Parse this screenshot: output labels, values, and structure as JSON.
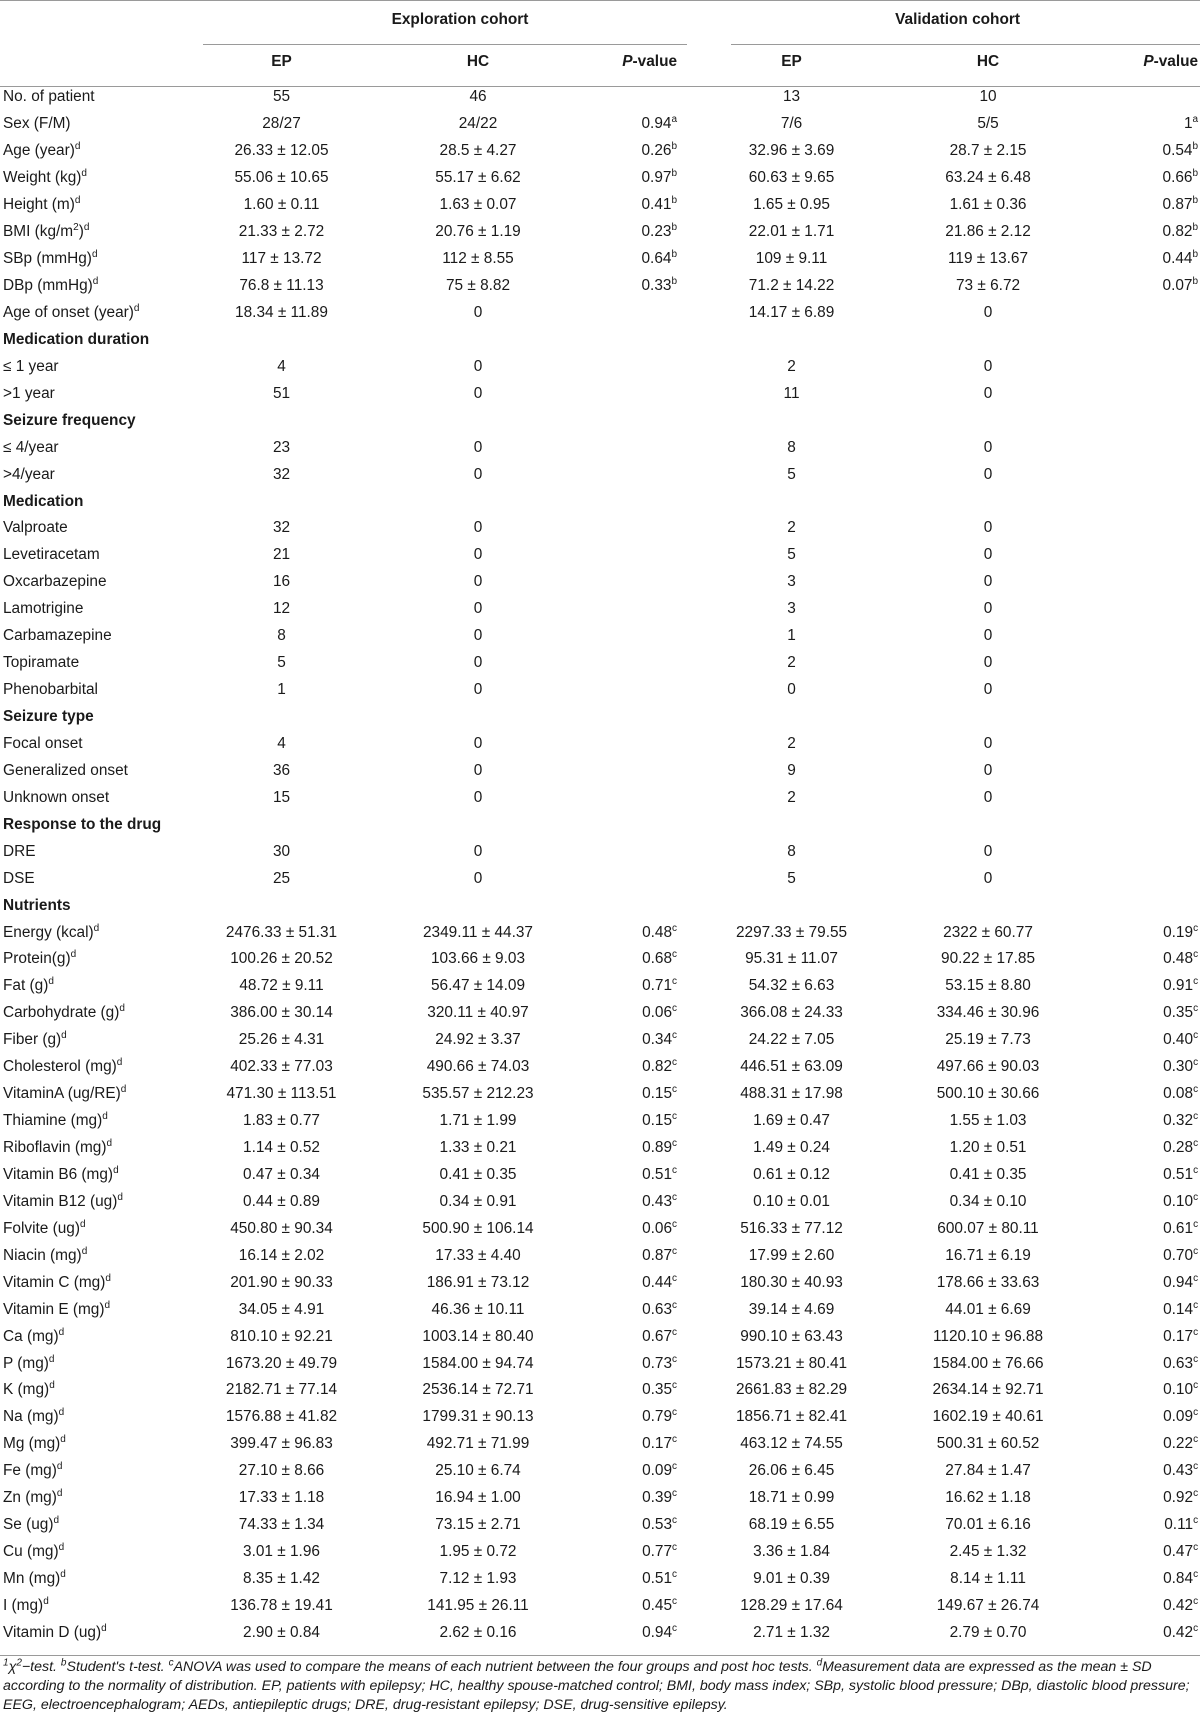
{
  "header": {
    "groups": [
      "Exploration cohort",
      "Validation cohort"
    ],
    "columns": [
      "EP",
      "HC",
      "P-value",
      "EP",
      "HC",
      "P-value"
    ],
    "pvalue_italic": "P",
    "pvalue_rest": "-value"
  },
  "rows": [
    {
      "type": "data",
      "label": "No. of patient",
      "c": [
        "55",
        "46",
        "",
        "13",
        "10",
        ""
      ]
    },
    {
      "type": "data",
      "label": "Sex (F/M)",
      "c": [
        "28/27",
        "24/22",
        "0.94a",
        "7/6",
        "5/5",
        "1a"
      ]
    },
    {
      "type": "data",
      "label": "Age (year)d",
      "c": [
        "26.33 ± 12.05",
        "28.5 ± 4.27",
        "0.26b",
        "32.96 ± 3.69",
        "28.7 ± 2.15",
        "0.54b"
      ]
    },
    {
      "type": "data",
      "label": "Weight (kg)d",
      "c": [
        "55.06 ± 10.65",
        "55.17 ± 6.62",
        "0.97b",
        "60.63 ± 9.65",
        "63.24 ± 6.48",
        "0.66b"
      ]
    },
    {
      "type": "data",
      "label": "Height (m)d",
      "c": [
        "1.60 ± 0.11",
        "1.63 ± 0.07",
        "0.41b",
        "1.65 ± 0.95",
        "1.61 ± 0.36",
        "0.87b"
      ]
    },
    {
      "type": "data",
      "label": "BMI (kg/m2)d",
      "c": [
        "21.33 ± 2.72",
        "20.76 ± 1.19",
        "0.23b",
        "22.01 ± 1.71",
        "21.86 ± 2.12",
        "0.82b"
      ]
    },
    {
      "type": "data",
      "label": "SBp (mmHg)d",
      "c": [
        "117 ± 13.72",
        "112 ± 8.55",
        "0.64b",
        "109 ± 9.11",
        "119 ± 13.67",
        "0.44b"
      ]
    },
    {
      "type": "data",
      "label": "DBp (mmHg)d",
      "c": [
        "76.8 ± 11.13",
        "75 ± 8.82",
        "0.33b",
        "71.2 ± 14.22",
        "73 ± 6.72",
        "0.07b"
      ]
    },
    {
      "type": "data",
      "label": "Age of onset (year)d",
      "c": [
        "18.34 ± 11.89",
        "0",
        "",
        "14.17 ± 6.89",
        "0",
        ""
      ]
    },
    {
      "type": "section",
      "label": "Medication duration"
    },
    {
      "type": "data",
      "label": "≤  1 year",
      "c": [
        "4",
        "0",
        "",
        "2",
        "0",
        ""
      ]
    },
    {
      "type": "data",
      "label": ">1 year",
      "c": [
        "51",
        "0",
        "",
        "11",
        "0",
        ""
      ]
    },
    {
      "type": "section",
      "label": "Seizure frequency"
    },
    {
      "type": "data",
      "label": "≤ 4/year",
      "c": [
        "23",
        "0",
        "",
        "8",
        "0",
        ""
      ]
    },
    {
      "type": "data",
      "label": ">4/year",
      "c": [
        "32",
        "0",
        "",
        "5",
        "0",
        ""
      ]
    },
    {
      "type": "section",
      "label": "Medication"
    },
    {
      "type": "data",
      "label": "Valproate",
      "c": [
        "32",
        "0",
        "",
        "2",
        "0",
        ""
      ]
    },
    {
      "type": "data",
      "label": "Levetiracetam",
      "c": [
        "21",
        "0",
        "",
        "5",
        "0",
        ""
      ]
    },
    {
      "type": "data",
      "label": "Oxcarbazepine",
      "c": [
        "16",
        "0",
        "",
        "3",
        "0",
        ""
      ]
    },
    {
      "type": "data",
      "label": "Lamotrigine",
      "c": [
        "12",
        "0",
        "",
        "3",
        "0",
        ""
      ]
    },
    {
      "type": "data",
      "label": "Carbamazepine",
      "c": [
        "8",
        "0",
        "",
        "1",
        "0",
        ""
      ]
    },
    {
      "type": "data",
      "label": "Topiramate",
      "c": [
        "5",
        "0",
        "",
        "2",
        "0",
        ""
      ]
    },
    {
      "type": "data",
      "label": "Phenobarbital",
      "c": [
        "1",
        "0",
        "",
        "0",
        "0",
        ""
      ]
    },
    {
      "type": "section",
      "label": "Seizure type"
    },
    {
      "type": "data",
      "label": "Focal onset",
      "c": [
        "4",
        "0",
        "",
        "2",
        "0",
        ""
      ]
    },
    {
      "type": "data",
      "label": "Generalized onset",
      "c": [
        "36",
        "0",
        "",
        "9",
        "0",
        ""
      ]
    },
    {
      "type": "data",
      "label": "Unknown onset",
      "c": [
        "15",
        "0",
        "",
        "2",
        "0",
        ""
      ]
    },
    {
      "type": "section",
      "label": "Response to the drug"
    },
    {
      "type": "data",
      "label": "DRE",
      "c": [
        "30",
        "0",
        "",
        "8",
        "0",
        ""
      ]
    },
    {
      "type": "data",
      "label": "DSE",
      "c": [
        "25",
        "0",
        "",
        "5",
        "0",
        ""
      ]
    },
    {
      "type": "section",
      "label": "Nutrients"
    },
    {
      "type": "data",
      "label": "Energy (kcal)d",
      "c": [
        "2476.33 ± 51.31",
        "2349.11 ± 44.37",
        "0.48c",
        "2297.33 ± 79.55",
        "2322 ± 60.77",
        "0.19c"
      ]
    },
    {
      "type": "data",
      "label": "Protein(g)d",
      "c": [
        "100.26 ± 20.52",
        "103.66 ± 9.03",
        "0.68c",
        "95.31 ± 11.07",
        "90.22 ± 17.85",
        "0.48c"
      ]
    },
    {
      "type": "data",
      "label": "Fat (g)d",
      "c": [
        "48.72 ± 9.11",
        "56.47 ± 14.09",
        "0.71c",
        "54.32 ± 6.63",
        "53.15 ± 8.80",
        "0.91c"
      ]
    },
    {
      "type": "data",
      "label": "Carbohydrate (g)d",
      "c": [
        "386.00 ± 30.14",
        "320.11 ± 40.97",
        "0.06c",
        "366.08 ± 24.33",
        "334.46 ± 30.96",
        "0.35c"
      ]
    },
    {
      "type": "data",
      "label": "Fiber (g)d",
      "c": [
        "25.26 ± 4.31",
        "24.92 ± 3.37",
        "0.34c",
        "24.22 ± 7.05",
        "25.19 ± 7.73",
        "0.40c"
      ]
    },
    {
      "type": "data",
      "label": "Cholesterol (mg)d",
      "c": [
        "402.33 ± 77.03",
        "490.66 ± 74.03",
        "0.82c",
        "446.51 ± 63.09",
        "497.66 ± 90.03",
        "0.30c"
      ]
    },
    {
      "type": "data",
      "label": "VitaminA (ug/RE)d",
      "c": [
        "471.30 ± 113.51",
        "535.57 ± 212.23",
        "0.15c",
        "488.31 ± 17.98",
        "500.10 ± 30.66",
        "0.08c"
      ]
    },
    {
      "type": "data",
      "label": "Thiamine (mg)d",
      "c": [
        "1.83 ± 0.77",
        "1.71 ± 1.99",
        "0.15c",
        "1.69 ± 0.47",
        "1.55 ± 1.03",
        "0.32c"
      ]
    },
    {
      "type": "data",
      "label": "Riboflavin (mg)d",
      "c": [
        "1.14 ± 0.52",
        "1.33 ± 0.21",
        "0.89c",
        "1.49 ± 0.24",
        "1.20 ± 0.51",
        "0.28c"
      ]
    },
    {
      "type": "data",
      "label": "Vitamin B6 (mg)d",
      "c": [
        "0.47 ± 0.34",
        "0.41 ± 0.35",
        "0.51c",
        "0.61 ± 0.12",
        "0.41 ± 0.35",
        "0.51c"
      ]
    },
    {
      "type": "data",
      "label": "Vitamin B12 (ug)d",
      "c": [
        "0.44 ± 0.89",
        "0.34 ± 0.91",
        "0.43c",
        "0.10 ± 0.01",
        "0.34 ± 0.10",
        "0.10c"
      ]
    },
    {
      "type": "data",
      "label": "Folvite (ug)d",
      "c": [
        "450.80 ± 90.34",
        "500.90 ± 106.14",
        "0.06c",
        "516.33 ± 77.12",
        "600.07 ± 80.11",
        "0.61c"
      ]
    },
    {
      "type": "data",
      "label": "Niacin (mg)d",
      "c": [
        "16.14 ± 2.02",
        "17.33 ± 4.40",
        "0.87c",
        "17.99 ± 2.60",
        "16.71 ± 6.19",
        "0.70c"
      ]
    },
    {
      "type": "data",
      "label": "Vitamin C (mg)d",
      "c": [
        "201.90 ± 90.33",
        "186.91 ± 73.12",
        "0.44c",
        "180.30 ± 40.93",
        "178.66 ± 33.63",
        "0.94c"
      ]
    },
    {
      "type": "data",
      "label": "Vitamin E (mg)d",
      "c": [
        "34.05 ± 4.91",
        "46.36 ± 10.11",
        "0.63c",
        "39.14 ± 4.69",
        "44.01 ± 6.69",
        "0.14c"
      ]
    },
    {
      "type": "data",
      "label": "Ca (mg)d",
      "c": [
        "810.10 ± 92.21",
        "1003.14 ± 80.40",
        "0.67c",
        "990.10 ± 63.43",
        "1120.10 ± 96.88",
        "0.17c"
      ]
    },
    {
      "type": "data",
      "label": "P (mg)d",
      "c": [
        "1673.20 ± 49.79",
        "1584.00 ± 94.74",
        "0.73c",
        "1573.21 ± 80.41",
        "1584.00 ± 76.66",
        "0.63c"
      ]
    },
    {
      "type": "data",
      "label": "K (mg)d",
      "c": [
        "2182.71 ± 77.14",
        "2536.14 ± 72.71",
        "0.35c",
        "2661.83 ± 82.29",
        "2634.14 ± 92.71",
        "0.10c"
      ]
    },
    {
      "type": "data",
      "label": "Na (mg)d",
      "c": [
        "1576.88 ± 41.82",
        "1799.31 ± 90.13",
        "0.79c",
        "1856.71 ± 82.41",
        "1602.19 ± 40.61",
        "0.09c"
      ]
    },
    {
      "type": "data",
      "label": "Mg (mg)d",
      "c": [
        "399.47 ± 96.83",
        "492.71 ± 71.99",
        "0.17c",
        "463.12 ± 74.55",
        "500.31 ± 60.52",
        "0.22c"
      ]
    },
    {
      "type": "data",
      "label": "Fe (mg)d",
      "c": [
        "27.10 ± 8.66",
        "25.10 ± 6.74",
        "0.09c",
        "26.06 ± 6.45",
        "27.84 ± 1.47",
        "0.43c"
      ]
    },
    {
      "type": "data",
      "label": "Zn (mg)d",
      "c": [
        "17.33 ± 1.18",
        "16.94 ± 1.00",
        "0.39c",
        "18.71 ± 0.99",
        "16.62 ± 1.18",
        "0.92c"
      ]
    },
    {
      "type": "data",
      "label": "Se (ug)d",
      "c": [
        "74.33 ± 1.34",
        "73.15 ± 2.71",
        "0.53c",
        "68.19 ± 6.55",
        "70.01 ± 6.16",
        "0.11c"
      ]
    },
    {
      "type": "data",
      "label": "Cu (mg)d",
      "c": [
        "3.01 ± 1.96",
        "1.95 ± 0.72",
        "0.77c",
        "3.36 ± 1.84",
        "2.45 ± 1.32",
        "0.47c"
      ]
    },
    {
      "type": "data",
      "label": "Mn (mg)d",
      "c": [
        "8.35 ± 1.42",
        "7.12 ± 1.93",
        "0.51c",
        "9.01 ± 0.39",
        "8.14 ± 1.11",
        "0.84c"
      ]
    },
    {
      "type": "data",
      "label": "I (mg)d",
      "c": [
        "136.78 ± 19.41",
        "141.95 ± 26.11",
        "0.45c",
        "128.29 ± 17.64",
        "149.67 ± 26.74",
        "0.42c"
      ]
    },
    {
      "type": "data",
      "label": "Vitamin D (ug)d",
      "c": [
        "2.90 ± 0.84",
        "2.62 ± 0.16",
        "0.94c",
        "2.71 ± 1.32",
        "2.79 ± 0.70",
        "0.42c"
      ]
    }
  ],
  "footnote": "1χ2−test. bStudent's t-test. cANOVA was used to compare the means of each nutrient between the four groups and post hoc tests. dMeasurement data are expressed as the mean ± SD according to the normality of distribution. EP, patients with epilepsy; HC, healthy spouse-matched control; BMI, body mass index; SBp, systolic blood pressure; DBp, diastolic blood pressure; EEG, electroencephalogram; AEDs, antiepileptic drugs; DRE, drug-resistant epilepsy; DSE, drug-sensitive epilepsy."
}
